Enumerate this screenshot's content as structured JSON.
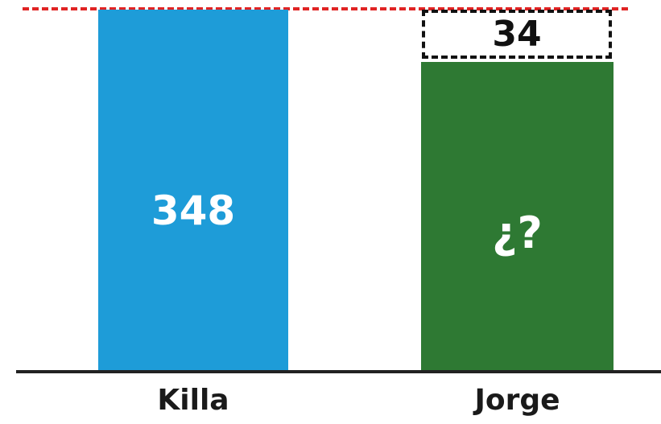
{
  "reference_line": {
    "color": "#e02424",
    "style": "dashed"
  },
  "bars": [
    {
      "name": "Killa",
      "value_label": "348",
      "value": 348,
      "color": "#1e9cd8"
    },
    {
      "name": "Jorge",
      "value_label": "¿?",
      "value": 314,
      "color": "#2e7933"
    }
  ],
  "difference": {
    "label": "34",
    "value": 34
  }
}
